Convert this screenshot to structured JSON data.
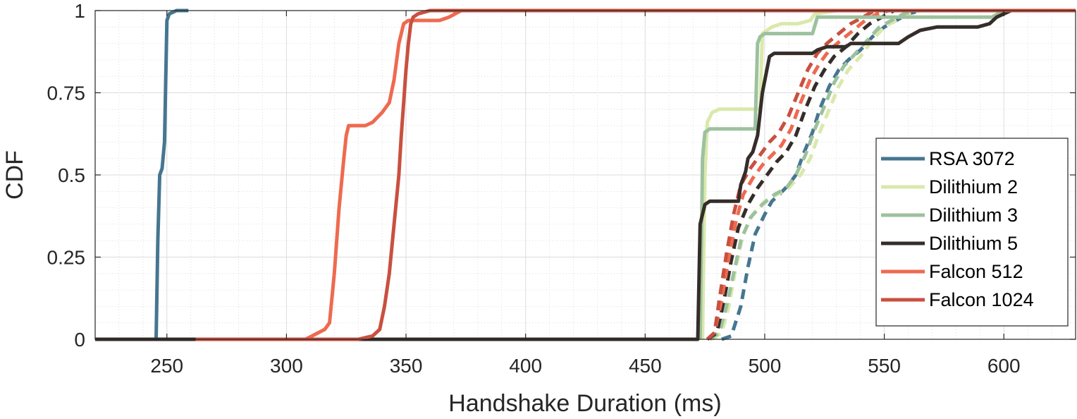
{
  "chart_data": {
    "type": "line",
    "title": "",
    "xlabel": "Handshake Duration (ms)",
    "ylabel": "CDF",
    "xlim": [
      220,
      630
    ],
    "ylim": [
      0,
      1
    ],
    "xticks": [
      250,
      300,
      350,
      400,
      450,
      500,
      550,
      600
    ],
    "xtick_labels": [
      "250",
      "300",
      "350",
      "400",
      "450",
      "500",
      "550",
      "600"
    ],
    "yticks": [
      0,
      0.25,
      0.5,
      0.75,
      1
    ],
    "ytick_labels": [
      "0",
      "0.25",
      "0.5",
      "0.75",
      "1"
    ],
    "grid": true,
    "minor_grid": true,
    "legend_position": "right",
    "legend": [
      {
        "label": "RSA 3072",
        "color": "#467690"
      },
      {
        "label": "Dilithium 2",
        "color": "#d9e9ac"
      },
      {
        "label": "Dilithium 3",
        "color": "#9dc19e"
      },
      {
        "label": "Dilithium 5",
        "color": "#352d29"
      },
      {
        "label": "Falcon 512",
        "color": "#ee6a50"
      },
      {
        "label": "Falcon 1024",
        "color": "#c9503f"
      }
    ],
    "series": [
      {
        "name": "RSA 3072",
        "color": "#467690",
        "dashed": false,
        "points": [
          [
            245.5,
            0
          ],
          [
            246.2,
            0.3
          ],
          [
            247,
            0.5
          ],
          [
            248,
            0.52
          ],
          [
            249,
            0.6
          ],
          [
            250,
            0.97
          ],
          [
            251,
            0.99
          ],
          [
            254,
            1
          ],
          [
            259,
            1
          ]
        ]
      },
      {
        "name": "Dilithium 2",
        "color": "#d9e9ac",
        "dashed": false,
        "points": [
          [
            474,
            0
          ],
          [
            475,
            0.5
          ],
          [
            476,
            0.66
          ],
          [
            478,
            0.69
          ],
          [
            481,
            0.7
          ],
          [
            498,
            0.7
          ],
          [
            499,
            0.93
          ],
          [
            503,
            0.95
          ],
          [
            507,
            0.96
          ],
          [
            514,
            0.96
          ],
          [
            519,
            0.97
          ],
          [
            521,
            0.99
          ],
          [
            530,
            1
          ],
          [
            630,
            1
          ]
        ]
      },
      {
        "name": "Dilithium 3",
        "color": "#9dc19e",
        "dashed": false,
        "points": [
          [
            473,
            0
          ],
          [
            474,
            0.55
          ],
          [
            475,
            0.63
          ],
          [
            477,
            0.64
          ],
          [
            496,
            0.64
          ],
          [
            497,
            0.9
          ],
          [
            498,
            0.92
          ],
          [
            500,
            0.93
          ],
          [
            520,
            0.93
          ],
          [
            522,
            0.98
          ],
          [
            595,
            0.98
          ],
          [
            600,
            1
          ],
          [
            630,
            1
          ]
        ]
      },
      {
        "name": "Dilithium 5",
        "color": "#352d29",
        "dashed": false,
        "points": [
          [
            220,
            0
          ],
          [
            472,
            0
          ],
          [
            473,
            0.35
          ],
          [
            475,
            0.41
          ],
          [
            477,
            0.42
          ],
          [
            489,
            0.42
          ],
          [
            490,
            0.47
          ],
          [
            492,
            0.51
          ],
          [
            493,
            0.55
          ],
          [
            495,
            0.57
          ],
          [
            497,
            0.62
          ],
          [
            499,
            0.75
          ],
          [
            502,
            0.86
          ],
          [
            504,
            0.87
          ],
          [
            520,
            0.87
          ],
          [
            522,
            0.88
          ],
          [
            526,
            0.89
          ],
          [
            534,
            0.89
          ],
          [
            536,
            0.9
          ],
          [
            556,
            0.9
          ],
          [
            560,
            0.92
          ],
          [
            565,
            0.94
          ],
          [
            572,
            0.95
          ],
          [
            589,
            0.95
          ],
          [
            594,
            0.96
          ],
          [
            597,
            0.98
          ],
          [
            603,
            1
          ],
          [
            630,
            1
          ]
        ]
      },
      {
        "name": "Falcon 512",
        "color": "#ee6a50",
        "dashed": false,
        "points": [
          [
            262,
            0
          ],
          [
            308,
            0
          ],
          [
            316,
            0.03
          ],
          [
            318,
            0.05
          ],
          [
            320,
            0.2
          ],
          [
            322,
            0.4
          ],
          [
            324,
            0.55
          ],
          [
            325,
            0.62
          ],
          [
            326,
            0.65
          ],
          [
            333,
            0.65
          ],
          [
            336,
            0.66
          ],
          [
            340,
            0.69
          ],
          [
            343,
            0.72
          ],
          [
            345,
            0.79
          ],
          [
            347,
            0.9
          ],
          [
            349,
            0.96
          ],
          [
            351,
            0.97
          ],
          [
            364,
            0.97
          ],
          [
            368,
            0.98
          ],
          [
            373,
            1
          ],
          [
            630,
            1
          ]
        ]
      },
      {
        "name": "Falcon 1024",
        "color": "#c9503f",
        "dashed": false,
        "points": [
          [
            262,
            0
          ],
          [
            330,
            0
          ],
          [
            336,
            0.01
          ],
          [
            339,
            0.03
          ],
          [
            341,
            0.1
          ],
          [
            343,
            0.2
          ],
          [
            345,
            0.35
          ],
          [
            347,
            0.5
          ],
          [
            348,
            0.62
          ],
          [
            349,
            0.72
          ],
          [
            350,
            0.82
          ],
          [
            351,
            0.9
          ],
          [
            352,
            0.96
          ],
          [
            353,
            0.98
          ],
          [
            355,
            0.99
          ],
          [
            360,
            1
          ],
          [
            630,
            1
          ]
        ]
      },
      {
        "name": "RSA 3072 (dashed)",
        "color": "#467690",
        "dashed": true,
        "points": [
          [
            482,
            0
          ],
          [
            486,
            0.01
          ],
          [
            490,
            0.1
          ],
          [
            493,
            0.22
          ],
          [
            496,
            0.32
          ],
          [
            500,
            0.38
          ],
          [
            503,
            0.42
          ],
          [
            506,
            0.44
          ],
          [
            510,
            0.47
          ],
          [
            513,
            0.5
          ],
          [
            516,
            0.56
          ],
          [
            520,
            0.63
          ],
          [
            523,
            0.7
          ],
          [
            527,
            0.77
          ],
          [
            531,
            0.82
          ],
          [
            535,
            0.85
          ],
          [
            540,
            0.88
          ],
          [
            545,
            0.92
          ],
          [
            550,
            0.95
          ],
          [
            555,
            0.97
          ],
          [
            560,
            0.99
          ],
          [
            565,
            1
          ]
        ]
      },
      {
        "name": "Dilithium 2 (dashed)",
        "color": "#d9e9ac",
        "dashed": true,
        "points": [
          [
            478,
            0
          ],
          [
            482,
            0.02
          ],
          [
            485,
            0.1
          ],
          [
            488,
            0.22
          ],
          [
            491,
            0.32
          ],
          [
            495,
            0.38
          ],
          [
            500,
            0.42
          ],
          [
            505,
            0.44
          ],
          [
            510,
            0.46
          ],
          [
            515,
            0.5
          ],
          [
            519,
            0.55
          ],
          [
            523,
            0.63
          ],
          [
            527,
            0.7
          ],
          [
            531,
            0.77
          ],
          [
            535,
            0.82
          ],
          [
            540,
            0.86
          ],
          [
            545,
            0.91
          ],
          [
            550,
            0.95
          ],
          [
            555,
            0.97
          ],
          [
            560,
            0.99
          ],
          [
            565,
            1
          ]
        ]
      },
      {
        "name": "Dilithium 3 (dashed)",
        "color": "#9dc19e",
        "dashed": true,
        "points": [
          [
            477,
            0
          ],
          [
            481,
            0.02
          ],
          [
            484,
            0.1
          ],
          [
            487,
            0.2
          ],
          [
            490,
            0.3
          ],
          [
            494,
            0.37
          ],
          [
            499,
            0.41
          ],
          [
            504,
            0.44
          ],
          [
            509,
            0.46
          ],
          [
            513,
            0.5
          ],
          [
            517,
            0.56
          ],
          [
            521,
            0.64
          ],
          [
            525,
            0.71
          ],
          [
            529,
            0.78
          ],
          [
            533,
            0.83
          ],
          [
            538,
            0.87
          ],
          [
            543,
            0.91
          ],
          [
            548,
            0.95
          ],
          [
            553,
            0.97
          ],
          [
            558,
            0.99
          ],
          [
            563,
            1
          ]
        ]
      },
      {
        "name": "Dilithium 5 (dashed)",
        "color": "#352d29",
        "dashed": true,
        "points": [
          [
            476,
            0
          ],
          [
            480,
            0.02
          ],
          [
            483,
            0.12
          ],
          [
            486,
            0.24
          ],
          [
            489,
            0.34
          ],
          [
            493,
            0.41
          ],
          [
            497,
            0.46
          ],
          [
            501,
            0.5
          ],
          [
            505,
            0.54
          ],
          [
            509,
            0.57
          ],
          [
            513,
            0.62
          ],
          [
            517,
            0.7
          ],
          [
            521,
            0.77
          ],
          [
            525,
            0.82
          ],
          [
            529,
            0.86
          ],
          [
            534,
            0.89
          ],
          [
            539,
            0.93
          ],
          [
            544,
            0.96
          ],
          [
            549,
            0.98
          ],
          [
            554,
            1
          ]
        ]
      },
      {
        "name": "Falcon 512 (dashed)",
        "color": "#ee6a50",
        "dashed": true,
        "points": [
          [
            476,
            0
          ],
          [
            479,
            0.02
          ],
          [
            482,
            0.12
          ],
          [
            485,
            0.25
          ],
          [
            488,
            0.36
          ],
          [
            491,
            0.44
          ],
          [
            495,
            0.49
          ],
          [
            499,
            0.53
          ],
          [
            503,
            0.56
          ],
          [
            507,
            0.59
          ],
          [
            511,
            0.64
          ],
          [
            515,
            0.72
          ],
          [
            519,
            0.79
          ],
          [
            523,
            0.84
          ],
          [
            527,
            0.88
          ],
          [
            532,
            0.91
          ],
          [
            537,
            0.94
          ],
          [
            542,
            0.97
          ],
          [
            547,
            0.99
          ],
          [
            552,
            1
          ]
        ]
      },
      {
        "name": "Falcon 1024 (dashed)",
        "color": "#c9503f",
        "dashed": true,
        "points": [
          [
            476,
            0
          ],
          [
            479,
            0.02
          ],
          [
            481,
            0.12
          ],
          [
            484,
            0.26
          ],
          [
            487,
            0.38
          ],
          [
            490,
            0.47
          ],
          [
            494,
            0.52
          ],
          [
            498,
            0.56
          ],
          [
            502,
            0.6
          ],
          [
            506,
            0.63
          ],
          [
            510,
            0.68
          ],
          [
            514,
            0.75
          ],
          [
            518,
            0.82
          ],
          [
            522,
            0.87
          ],
          [
            526,
            0.9
          ],
          [
            531,
            0.93
          ],
          [
            536,
            0.96
          ],
          [
            541,
            0.98
          ],
          [
            546,
            1
          ]
        ]
      }
    ]
  }
}
